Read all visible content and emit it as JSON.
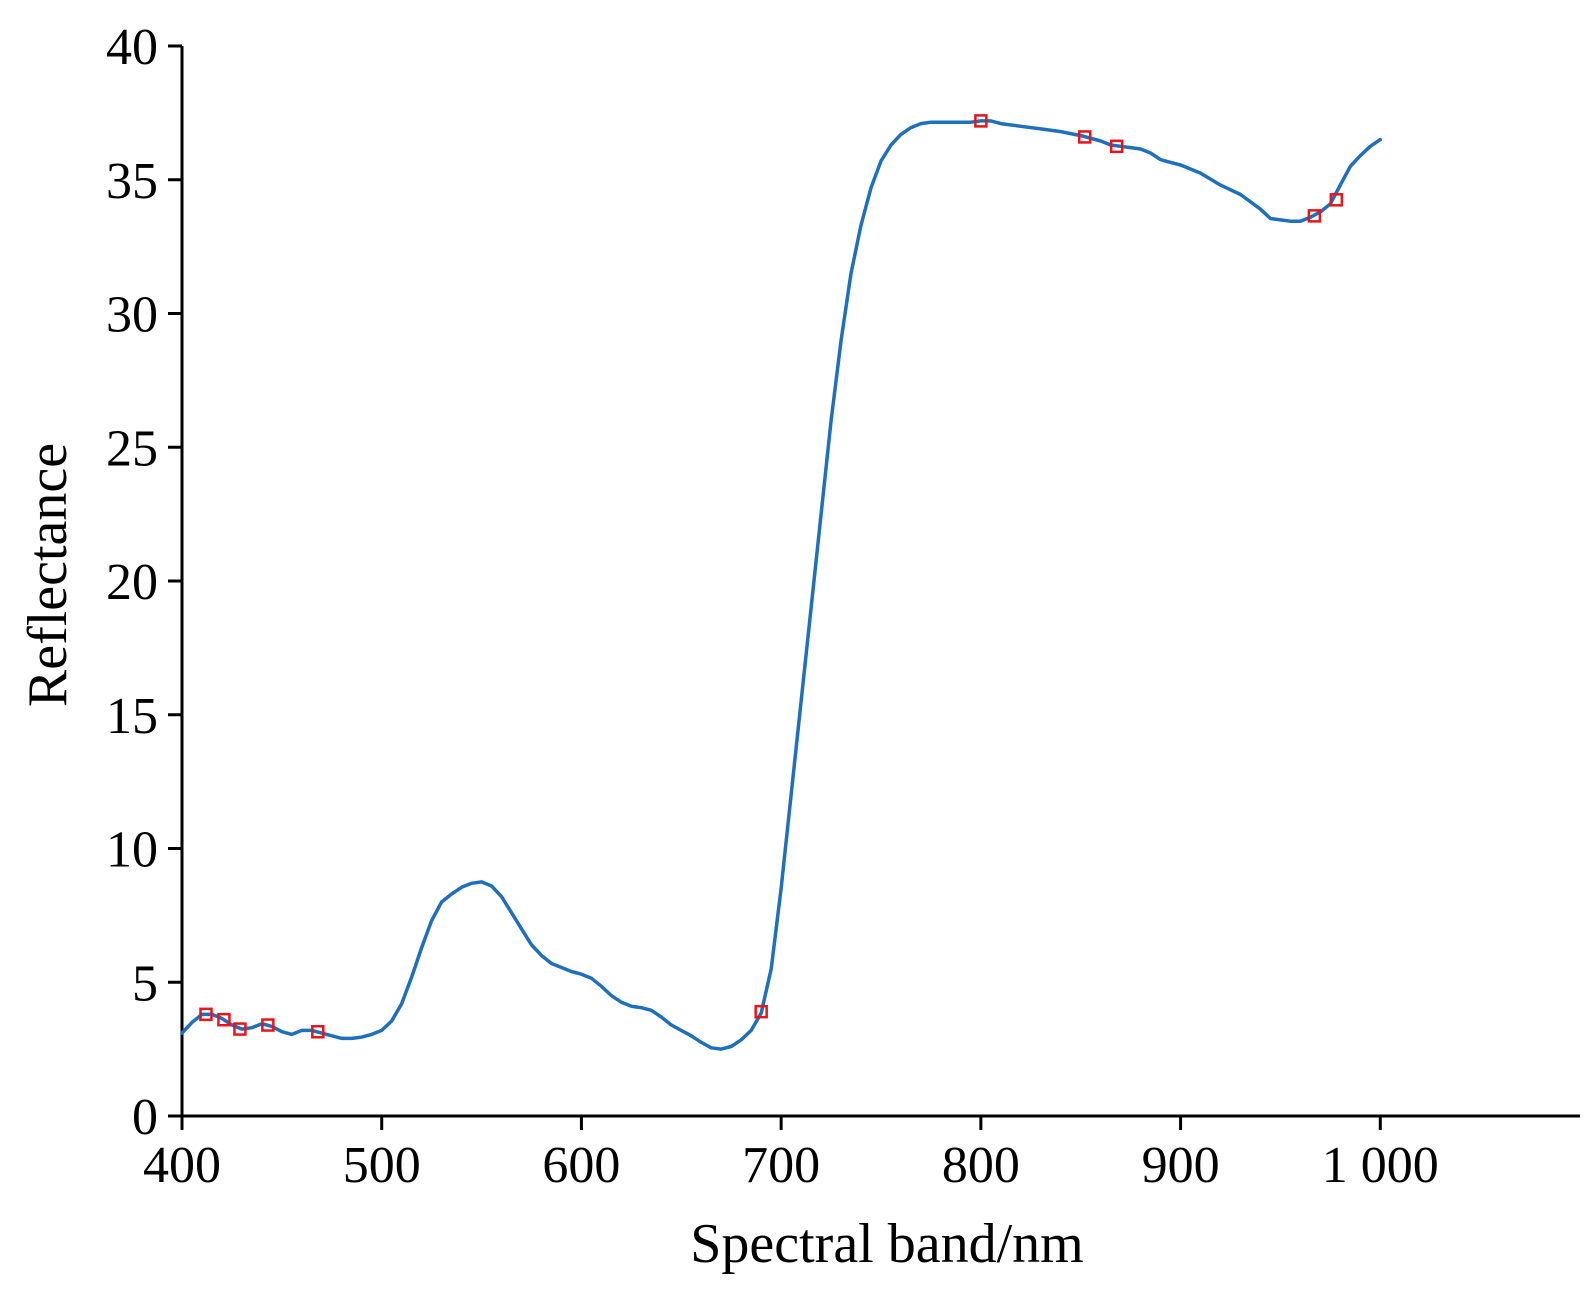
{
  "chart_data": {
    "type": "line",
    "title": "",
    "xlabel": "Spectral band/nm",
    "ylabel": "Reflectance",
    "xlim": [
      400,
      1100
    ],
    "ylim": [
      0,
      40
    ],
    "x_ticks": [
      400,
      500,
      600,
      700,
      800,
      900,
      1000
    ],
    "x_tick_labels": [
      "400",
      "500",
      "600",
      "700",
      "800",
      "900",
      "1 000"
    ],
    "y_ticks": [
      0,
      5,
      10,
      15,
      20,
      25,
      30,
      35,
      40
    ],
    "y_tick_labels": [
      "0",
      "5",
      "10",
      "15",
      "20",
      "25",
      "30",
      "35",
      "40"
    ],
    "grid": false,
    "line_color": "#1f6fba",
    "marker_color": "#e8141b",
    "series": [
      {
        "points": [
          [
            400,
            3.1
          ],
          [
            405,
            3.5
          ],
          [
            410,
            3.8
          ],
          [
            415,
            3.8
          ],
          [
            420,
            3.65
          ],
          [
            425,
            3.4
          ],
          [
            430,
            3.25
          ],
          [
            435,
            3.3
          ],
          [
            440,
            3.45
          ],
          [
            445,
            3.35
          ],
          [
            450,
            3.15
          ],
          [
            455,
            3.05
          ],
          [
            460,
            3.2
          ],
          [
            465,
            3.2
          ],
          [
            470,
            3.1
          ],
          [
            475,
            3.0
          ],
          [
            480,
            2.9
          ],
          [
            485,
            2.9
          ],
          [
            490,
            2.95
          ],
          [
            495,
            3.05
          ],
          [
            500,
            3.2
          ],
          [
            505,
            3.55
          ],
          [
            510,
            4.2
          ],
          [
            515,
            5.2
          ],
          [
            520,
            6.3
          ],
          [
            525,
            7.3
          ],
          [
            530,
            8.0
          ],
          [
            535,
            8.3
          ],
          [
            540,
            8.55
          ],
          [
            545,
            8.7
          ],
          [
            550,
            8.75
          ],
          [
            555,
            8.6
          ],
          [
            560,
            8.2
          ],
          [
            565,
            7.6
          ],
          [
            570,
            7.0
          ],
          [
            575,
            6.4
          ],
          [
            580,
            6.0
          ],
          [
            585,
            5.7
          ],
          [
            590,
            5.55
          ],
          [
            595,
            5.4
          ],
          [
            600,
            5.3
          ],
          [
            605,
            5.15
          ],
          [
            610,
            4.85
          ],
          [
            615,
            4.5
          ],
          [
            620,
            4.25
          ],
          [
            625,
            4.1
          ],
          [
            630,
            4.05
          ],
          [
            635,
            3.95
          ],
          [
            640,
            3.7
          ],
          [
            645,
            3.4
          ],
          [
            650,
            3.2
          ],
          [
            655,
            3.0
          ],
          [
            660,
            2.75
          ],
          [
            665,
            2.55
          ],
          [
            670,
            2.5
          ],
          [
            675,
            2.6
          ],
          [
            680,
            2.85
          ],
          [
            685,
            3.2
          ],
          [
            690,
            3.85
          ],
          [
            695,
            5.5
          ],
          [
            700,
            8.5
          ],
          [
            705,
            12.0
          ],
          [
            710,
            15.5
          ],
          [
            715,
            19.0
          ],
          [
            720,
            22.5
          ],
          [
            725,
            26.0
          ],
          [
            730,
            29.0
          ],
          [
            735,
            31.5
          ],
          [
            740,
            33.3
          ],
          [
            745,
            34.7
          ],
          [
            750,
            35.7
          ],
          [
            755,
            36.3
          ],
          [
            760,
            36.7
          ],
          [
            765,
            36.95
          ],
          [
            770,
            37.1
          ],
          [
            775,
            37.15
          ],
          [
            780,
            37.15
          ],
          [
            785,
            37.15
          ],
          [
            790,
            37.15
          ],
          [
            795,
            37.15
          ],
          [
            800,
            37.2
          ],
          [
            805,
            37.2
          ],
          [
            810,
            37.1
          ],
          [
            820,
            37.0
          ],
          [
            830,
            36.9
          ],
          [
            840,
            36.8
          ],
          [
            850,
            36.65
          ],
          [
            860,
            36.45
          ],
          [
            865,
            36.3
          ],
          [
            870,
            36.25
          ],
          [
            875,
            36.2
          ],
          [
            880,
            36.15
          ],
          [
            885,
            36.0
          ],
          [
            890,
            35.75
          ],
          [
            895,
            35.65
          ],
          [
            900,
            35.55
          ],
          [
            910,
            35.25
          ],
          [
            920,
            34.8
          ],
          [
            930,
            34.45
          ],
          [
            940,
            33.9
          ],
          [
            945,
            33.55
          ],
          [
            950,
            33.5
          ],
          [
            955,
            33.45
          ],
          [
            960,
            33.45
          ],
          [
            965,
            33.6
          ],
          [
            970,
            33.8
          ],
          [
            975,
            34.1
          ],
          [
            980,
            34.8
          ],
          [
            985,
            35.5
          ],
          [
            990,
            35.9
          ],
          [
            995,
            36.25
          ],
          [
            1000,
            36.5
          ]
        ]
      }
    ],
    "markers": [
      [
        412,
        3.8
      ],
      [
        421,
        3.6
      ],
      [
        429,
        3.25
      ],
      [
        443,
        3.4
      ],
      [
        468,
        3.15
      ],
      [
        690,
        3.9
      ],
      [
        800,
        37.2
      ],
      [
        852,
        36.6
      ],
      [
        868,
        36.25
      ],
      [
        967,
        33.65
      ],
      [
        978,
        34.25
      ]
    ]
  }
}
